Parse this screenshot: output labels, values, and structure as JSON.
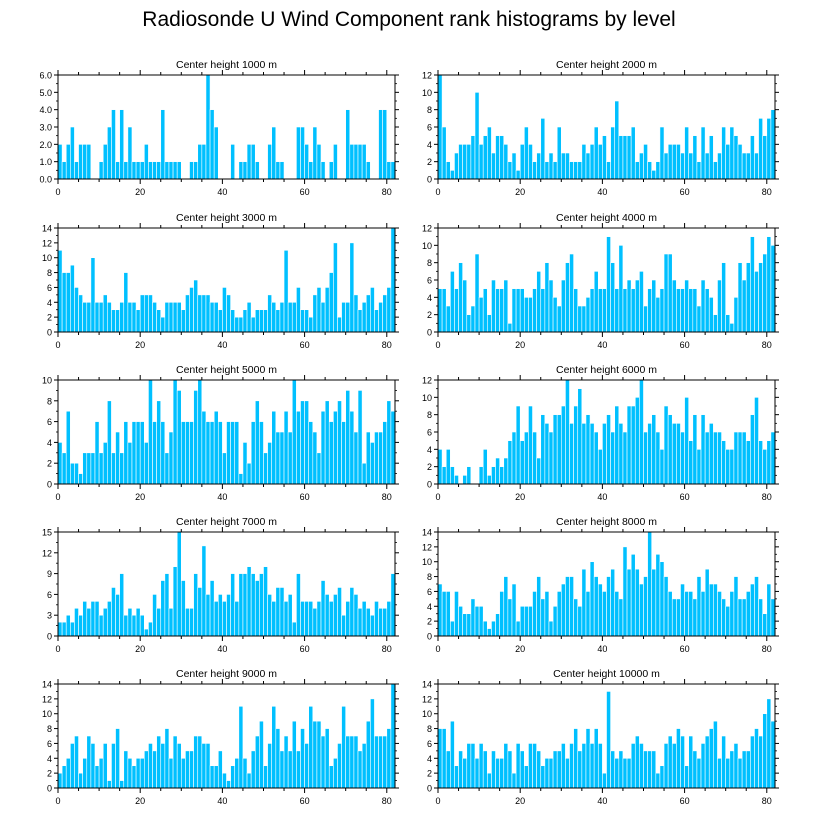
{
  "page": {
    "title": "Radiosonde U Wind Component rank histograms by level"
  },
  "style": {
    "bar_color": "#00c0ff",
    "bar_edge": "#ffffff",
    "axis_color": "#000000"
  },
  "chart_data": [
    {
      "type": "bar",
      "title": "Center height 1000 m",
      "xlim": [
        0,
        82
      ],
      "xticks": [
        0,
        20,
        40,
        60,
        80
      ],
      "ylim": [
        0,
        6
      ],
      "yticks": [
        0,
        1,
        2,
        3,
        4,
        5,
        6
      ],
      "ytick_labels": [
        "0.0",
        "1.0",
        "2.0",
        "3.0",
        "4.0",
        "5.0",
        "6.0"
      ],
      "values": [
        2,
        1,
        2,
        3,
        1,
        2,
        2,
        2,
        0,
        0,
        1,
        2,
        3,
        4,
        1,
        4,
        1,
        3,
        1,
        1,
        1,
        2,
        1,
        1,
        1,
        4,
        1,
        1,
        1,
        1,
        0,
        0,
        1,
        1,
        2,
        2,
        6,
        4,
        3,
        0,
        0,
        0,
        2,
        0,
        1,
        1,
        2,
        2,
        1,
        0,
        0,
        2,
        3,
        1,
        1,
        0,
        0,
        0,
        3,
        3,
        2,
        1,
        3,
        2,
        1,
        0,
        1,
        2,
        0,
        0,
        4,
        2,
        2,
        2,
        2,
        1,
        0,
        0,
        4,
        4,
        1,
        1
      ]
    },
    {
      "type": "bar",
      "title": "Center height 2000 m",
      "xlim": [
        0,
        82
      ],
      "xticks": [
        0,
        20,
        40,
        60,
        80
      ],
      "ylim": [
        0,
        12
      ],
      "yticks": [
        0,
        2,
        4,
        6,
        8,
        10,
        12
      ],
      "ytick_labels": [
        "0",
        "2",
        "4",
        "6",
        "8",
        "10",
        "12"
      ],
      "values": [
        12,
        6,
        2,
        1,
        3,
        4,
        4,
        4,
        5,
        10,
        4,
        5,
        6,
        3,
        5,
        5,
        4,
        2,
        3,
        1,
        4,
        6,
        4,
        2,
        3,
        7,
        2,
        3,
        2,
        6,
        3,
        3,
        2,
        2,
        2,
        4,
        3,
        4,
        6,
        4,
        5,
        2,
        6,
        9,
        5,
        5,
        5,
        6,
        2,
        3,
        4,
        2,
        1,
        2,
        6,
        3,
        4,
        4,
        4,
        3,
        6,
        3,
        5,
        2,
        6,
        3,
        5,
        2,
        3,
        6,
        4,
        6,
        5,
        4,
        3,
        3,
        5,
        3,
        7,
        5,
        7,
        8
      ]
    },
    {
      "type": "bar",
      "title": "Center height 3000 m",
      "xlim": [
        0,
        82
      ],
      "xticks": [
        0,
        20,
        40,
        60,
        80
      ],
      "ylim": [
        0,
        14
      ],
      "yticks": [
        0,
        2,
        4,
        6,
        8,
        10,
        12,
        14
      ],
      "ytick_labels": [
        "0",
        "2",
        "4",
        "6",
        "8",
        "10",
        "12",
        "14"
      ],
      "values": [
        11,
        8,
        8,
        9,
        6,
        5,
        4,
        4,
        10,
        4,
        4,
        5,
        4,
        3,
        3,
        4,
        8,
        4,
        4,
        3,
        5,
        5,
        5,
        4,
        3,
        2,
        4,
        4,
        4,
        4,
        3,
        5,
        6,
        7,
        5,
        5,
        5,
        4,
        4,
        3,
        6,
        5,
        3,
        2,
        2,
        3,
        4,
        2,
        3,
        3,
        3,
        5,
        4,
        3,
        4,
        11,
        4,
        4,
        6,
        3,
        3,
        2,
        5,
        6,
        4,
        6,
        8,
        12,
        2,
        4,
        4,
        12,
        5,
        3,
        4,
        5,
        6,
        3,
        4,
        5,
        6,
        14
      ]
    },
    {
      "type": "bar",
      "title": "Center height 4000 m",
      "xlim": [
        0,
        82
      ],
      "xticks": [
        0,
        20,
        40,
        60,
        80
      ],
      "ylim": [
        0,
        12
      ],
      "yticks": [
        0,
        2,
        4,
        6,
        8,
        10,
        12
      ],
      "ytick_labels": [
        "0",
        "2",
        "4",
        "6",
        "8",
        "10",
        "12"
      ],
      "values": [
        5,
        5,
        3,
        7,
        5,
        8,
        6,
        2,
        3,
        9,
        4,
        5,
        2,
        6,
        5,
        5,
        6,
        1,
        5,
        5,
        5,
        4,
        4,
        5,
        7,
        5,
        8,
        6,
        4,
        3,
        6,
        8,
        9,
        5,
        3,
        3,
        4,
        5,
        7,
        5,
        5,
        11,
        8,
        5,
        10,
        5,
        6,
        5,
        6,
        7,
        3,
        5,
        6,
        4,
        5,
        9,
        9,
        6,
        5,
        5,
        6,
        5,
        5,
        3,
        6,
        5,
        4,
        2,
        6,
        8,
        2,
        1,
        4,
        8,
        6,
        8,
        11,
        7,
        8,
        9,
        11,
        10
      ]
    },
    {
      "type": "bar",
      "title": "Center height 5000 m",
      "xlim": [
        0,
        82
      ],
      "xticks": [
        0,
        20,
        40,
        60,
        80
      ],
      "ylim": [
        0,
        10
      ],
      "yticks": [
        0,
        2,
        4,
        6,
        8,
        10
      ],
      "ytick_labels": [
        "0",
        "2",
        "4",
        "6",
        "8",
        "10"
      ],
      "values": [
        4,
        3,
        7,
        2,
        2,
        1,
        3,
        3,
        3,
        6,
        3,
        4,
        8,
        3,
        5,
        3,
        6,
        4,
        6,
        6,
        6,
        4,
        10,
        6,
        8,
        6,
        3,
        5,
        10,
        9,
        6,
        6,
        6,
        9,
        10,
        7,
        6,
        6,
        7,
        6,
        3,
        6,
        6,
        6,
        1,
        4,
        2,
        6,
        8,
        6,
        3,
        4,
        7,
        5,
        5,
        7,
        5,
        10,
        7,
        8,
        8,
        6,
        5,
        3,
        7,
        8,
        6,
        7,
        8,
        6,
        9,
        7,
        5,
        9,
        2,
        5,
        4,
        5,
        5,
        6,
        8,
        7
      ]
    },
    {
      "type": "bar",
      "title": "Center height 6000 m",
      "xlim": [
        0,
        82
      ],
      "xticks": [
        0,
        20,
        40,
        60,
        80
      ],
      "ylim": [
        0,
        12
      ],
      "yticks": [
        0,
        2,
        4,
        6,
        8,
        10,
        12
      ],
      "ytick_labels": [
        "0",
        "2",
        "4",
        "6",
        "8",
        "10",
        "12"
      ],
      "values": [
        4,
        2,
        4,
        2,
        1,
        0,
        1,
        2,
        0,
        0,
        2,
        4,
        1,
        2,
        3,
        2,
        3,
        5,
        6,
        9,
        5,
        6,
        9,
        6,
        3,
        8,
        7,
        6,
        8,
        8,
        9,
        12,
        7,
        9,
        11,
        7,
        8,
        7,
        6,
        4,
        7,
        8,
        6,
        9,
        7,
        6,
        9,
        9,
        10,
        12,
        6,
        7,
        8,
        6,
        4,
        9,
        8,
        7,
        7,
        6,
        10,
        5,
        8,
        4,
        8,
        6,
        7,
        6,
        6,
        5,
        4,
        4,
        6,
        6,
        6,
        5,
        8,
        10,
        5,
        4,
        5,
        6
      ]
    },
    {
      "type": "bar",
      "title": "Center height 7000 m",
      "xlim": [
        0,
        82
      ],
      "xticks": [
        0,
        20,
        40,
        60,
        80
      ],
      "ylim": [
        0,
        15
      ],
      "yticks": [
        0,
        3,
        6,
        9,
        12,
        15
      ],
      "ytick_labels": [
        "0",
        "3",
        "6",
        "9",
        "12",
        "15"
      ],
      "values": [
        2,
        2,
        3,
        2,
        4,
        3,
        5,
        4,
        5,
        5,
        3,
        4,
        5,
        7,
        6,
        9,
        3,
        4,
        3,
        4,
        3,
        1,
        2,
        6,
        4,
        8,
        9,
        4,
        10,
        15,
        8,
        4,
        4,
        9,
        7,
        13,
        6,
        8,
        5,
        6,
        5,
        6,
        9,
        5,
        9,
        9,
        10,
        9,
        8,
        9,
        10,
        6,
        5,
        7,
        7,
        5,
        6,
        2,
        9,
        5,
        5,
        5,
        4,
        5,
        8,
        6,
        5,
        6,
        7,
        3,
        5,
        7,
        6,
        4,
        5,
        4,
        3,
        5,
        4,
        4,
        5,
        9
      ]
    },
    {
      "type": "bar",
      "title": "Center height 8000 m",
      "xlim": [
        0,
        82
      ],
      "xticks": [
        0,
        20,
        40,
        60,
        80
      ],
      "ylim": [
        0,
        14
      ],
      "yticks": [
        0,
        2,
        4,
        6,
        8,
        10,
        12,
        14
      ],
      "ytick_labels": [
        "0",
        "2",
        "4",
        "6",
        "8",
        "10",
        "12",
        "14"
      ],
      "values": [
        7,
        6,
        6,
        2,
        6,
        4,
        3,
        3,
        5,
        4,
        4,
        2,
        1,
        2,
        3,
        6,
        8,
        5,
        7,
        2,
        4,
        4,
        4,
        6,
        8,
        5,
        6,
        2,
        4,
        6,
        7,
        8,
        8,
        5,
        4,
        9,
        6,
        10,
        8,
        7,
        6,
        8,
        9,
        6,
        5,
        12,
        9,
        11,
        9,
        7,
        8,
        14,
        9,
        11,
        10,
        8,
        6,
        5,
        5,
        7,
        6,
        6,
        5,
        8,
        6,
        9,
        7,
        7,
        6,
        5,
        4,
        6,
        8,
        5,
        5,
        6,
        7,
        8,
        5,
        3,
        7,
        5
      ]
    },
    {
      "type": "bar",
      "title": "Center height 9000 m",
      "xlim": [
        0,
        82
      ],
      "xticks": [
        0,
        20,
        40,
        60,
        80
      ],
      "ylim": [
        0,
        14
      ],
      "yticks": [
        0,
        2,
        4,
        6,
        8,
        10,
        12,
        14
      ],
      "ytick_labels": [
        "0",
        "2",
        "4",
        "6",
        "8",
        "10",
        "12",
        "14"
      ],
      "values": [
        2,
        3,
        4,
        6,
        7,
        2,
        4,
        7,
        6,
        3,
        4,
        6,
        1,
        6,
        8,
        1,
        5,
        4,
        3,
        4,
        4,
        5,
        6,
        5,
        7,
        6,
        8,
        4,
        7,
        6,
        4,
        5,
        5,
        7,
        7,
        6,
        6,
        3,
        3,
        5,
        2,
        1,
        3,
        4,
        11,
        4,
        2,
        5,
        7,
        9,
        3,
        6,
        11,
        8,
        5,
        7,
        5,
        9,
        5,
        8,
        6,
        11,
        9,
        9,
        7,
        8,
        3,
        4,
        6,
        11,
        7,
        7,
        7,
        5,
        6,
        9,
        12,
        7,
        7,
        7,
        8,
        14
      ]
    },
    {
      "type": "bar",
      "title": "Center height 10000 m",
      "xlim": [
        0,
        82
      ],
      "xticks": [
        0,
        20,
        40,
        60,
        80
      ],
      "ylim": [
        0,
        14
      ],
      "yticks": [
        0,
        2,
        4,
        6,
        8,
        10,
        12,
        14
      ],
      "ytick_labels": [
        "0",
        "2",
        "4",
        "6",
        "8",
        "10",
        "12",
        "14"
      ],
      "values": [
        8,
        8,
        5,
        9,
        3,
        5,
        4,
        6,
        6,
        4,
        6,
        5,
        2,
        5,
        4,
        4,
        6,
        5,
        2,
        6,
        5,
        3,
        6,
        6,
        5,
        3,
        4,
        4,
        5,
        5,
        6,
        4,
        6,
        8,
        5,
        6,
        8,
        6,
        8,
        6,
        2,
        13,
        5,
        4,
        5,
        4,
        4,
        6,
        7,
        6,
        5,
        5,
        5,
        2,
        3,
        6,
        7,
        6,
        8,
        7,
        3,
        7,
        5,
        4,
        6,
        7,
        8,
        9,
        4,
        7,
        4,
        5,
        6,
        4,
        5,
        5,
        7,
        8,
        7,
        10,
        12,
        9
      ]
    }
  ]
}
